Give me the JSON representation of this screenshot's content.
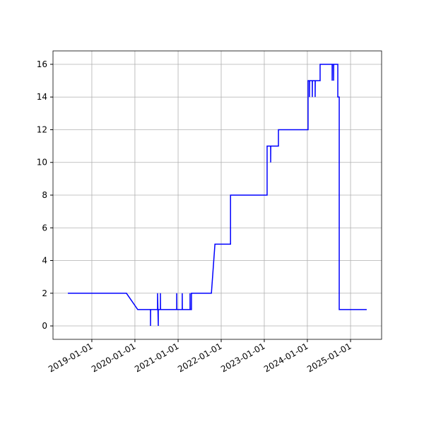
{
  "chart_data": {
    "type": "line",
    "x": [
      "2018-06-12",
      "2019-10-21",
      "2020-01-25",
      "2020-05-12",
      "2020-05-12",
      "2020-05-13",
      "2020-07-11",
      "2020-07-11",
      "2020-07-17",
      "2020-07-17",
      "2020-08-04",
      "2020-08-04",
      "2020-08-05",
      "2020-12-20",
      "2020-12-20",
      "2020-12-21",
      "2021-02-05",
      "2021-02-05",
      "2021-02-06",
      "2021-04-12",
      "2021-04-12",
      "2021-04-13",
      "2021-04-24",
      "2021-04-24",
      "2021-10-10",
      "2021-11-09",
      "2022-03-21",
      "2022-03-21",
      "2023-01-25",
      "2023-01-25",
      "2023-02-24",
      "2023-02-24",
      "2023-02-25",
      "2023-05-01",
      "2023-05-01",
      "2024-01-07",
      "2024-01-07",
      "2024-01-19",
      "2024-01-19",
      "2024-01-20",
      "2024-02-12",
      "2024-02-12",
      "2024-02-13",
      "2024-03-07",
      "2024-03-07",
      "2024-03-08",
      "2024-04-18",
      "2024-04-18",
      "2024-07-29",
      "2024-07-29",
      "2024-07-30",
      "2024-08-10",
      "2024-08-10",
      "2024-08-11",
      "2024-09-15",
      "2024-09-15",
      "2024-09-27",
      "2024-09-27",
      "2025-05-18"
    ],
    "series": [
      {
        "color": "#0000ff",
        "values": [
          2,
          2,
          1,
          1,
          0,
          1,
          1,
          2,
          0,
          1,
          1,
          2,
          1,
          1,
          2,
          1,
          1,
          2,
          1,
          1,
          2,
          1,
          1,
          2,
          2,
          5,
          5,
          8,
          8,
          11,
          11,
          10,
          11,
          11,
          12,
          12,
          15,
          15,
          14,
          15,
          15,
          14,
          15,
          15,
          14,
          15,
          15,
          16,
          16,
          15,
          16,
          16,
          15,
          16,
          16,
          14,
          14,
          1,
          1
        ]
      }
    ],
    "xlim": [
      "2018-02-06",
      "2025-09-21"
    ],
    "xticks": [
      "2019-01-01",
      "2020-01-01",
      "2021-01-01",
      "2022-01-01",
      "2023-01-01",
      "2024-01-01",
      "2025-01-01"
    ],
    "ylim": [
      -0.82,
      16.82
    ],
    "yticks": [
      0,
      2,
      4,
      6,
      8,
      10,
      12,
      14,
      16
    ],
    "grid": true
  }
}
